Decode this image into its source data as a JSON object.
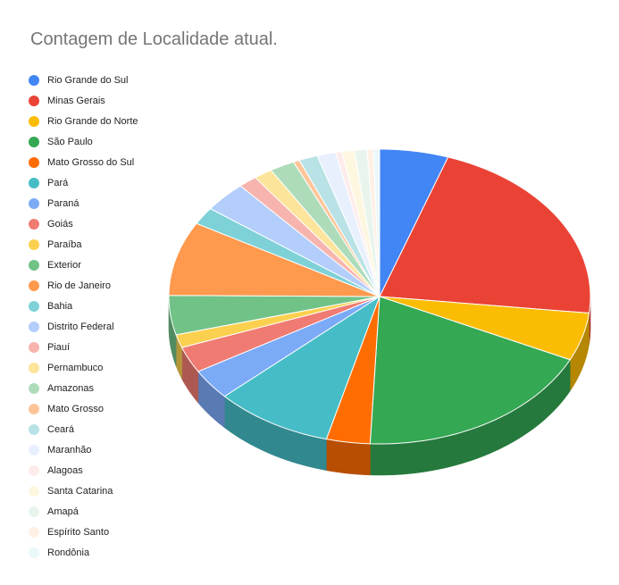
{
  "chart_data": {
    "type": "pie",
    "title": "Contagem de Localidade atual.",
    "legend_position": "left",
    "three_d": true,
    "slices": [
      {
        "label": "Rio Grande do Sul",
        "value": 5.5,
        "color": "#4285F4"
      },
      {
        "label": "Minas Gerais",
        "value": 22.5,
        "color": "#EA4335"
      },
      {
        "label": "Rio Grande do Norte",
        "value": 5.5,
        "color": "#FBBC04"
      },
      {
        "label": "São Paulo",
        "value": 19.5,
        "color": "#34A853"
      },
      {
        "label": "Mato Grosso do Sul",
        "value": 3.5,
        "color": "#FF6D01"
      },
      {
        "label": "Pará",
        "value": 9.5,
        "color": "#46BDC6"
      },
      {
        "label": "Paraná",
        "value": 3.5,
        "color": "#7BAAF7"
      },
      {
        "label": "Goiás",
        "value": 3.0,
        "color": "#F07B72"
      },
      {
        "label": "Paraíba",
        "value": 1.5,
        "color": "#FCD04F"
      },
      {
        "label": "Exterior",
        "value": 4.5,
        "color": "#71C287"
      },
      {
        "label": "Rio de Janeiro",
        "value": 8.5,
        "color": "#FF994D"
      },
      {
        "label": "Bahia",
        "value": 2.0,
        "color": "#7ED1D7"
      },
      {
        "label": "Distrito Federal",
        "value": 3.5,
        "color": "#B3CEFB"
      },
      {
        "label": "Piauí",
        "value": 1.5,
        "color": "#F7B4AE"
      },
      {
        "label": "Pernambuco",
        "value": 1.5,
        "color": "#FDE49B"
      },
      {
        "label": "Amazonas",
        "value": 2.0,
        "color": "#AEDCBA"
      },
      {
        "label": "Mato Grosso",
        "value": 0.5,
        "color": "#FFC599"
      },
      {
        "label": "Ceará",
        "value": 1.5,
        "color": "#B8E2E6"
      },
      {
        "label": "Maranhão",
        "value": 1.5,
        "color": "#E8F0FE"
      },
      {
        "label": "Alagoas",
        "value": 0.5,
        "color": "#FDECEB"
      },
      {
        "label": "Santa Catarina",
        "value": 1.0,
        "color": "#FEF7E0"
      },
      {
        "label": "Amapá",
        "value": 1.0,
        "color": "#E9F5EC"
      },
      {
        "label": "Espírito Santo",
        "value": 0.5,
        "color": "#FFF0E6"
      },
      {
        "label": "Rondônia",
        "value": 0.5,
        "color": "#EAF8F9"
      }
    ]
  }
}
